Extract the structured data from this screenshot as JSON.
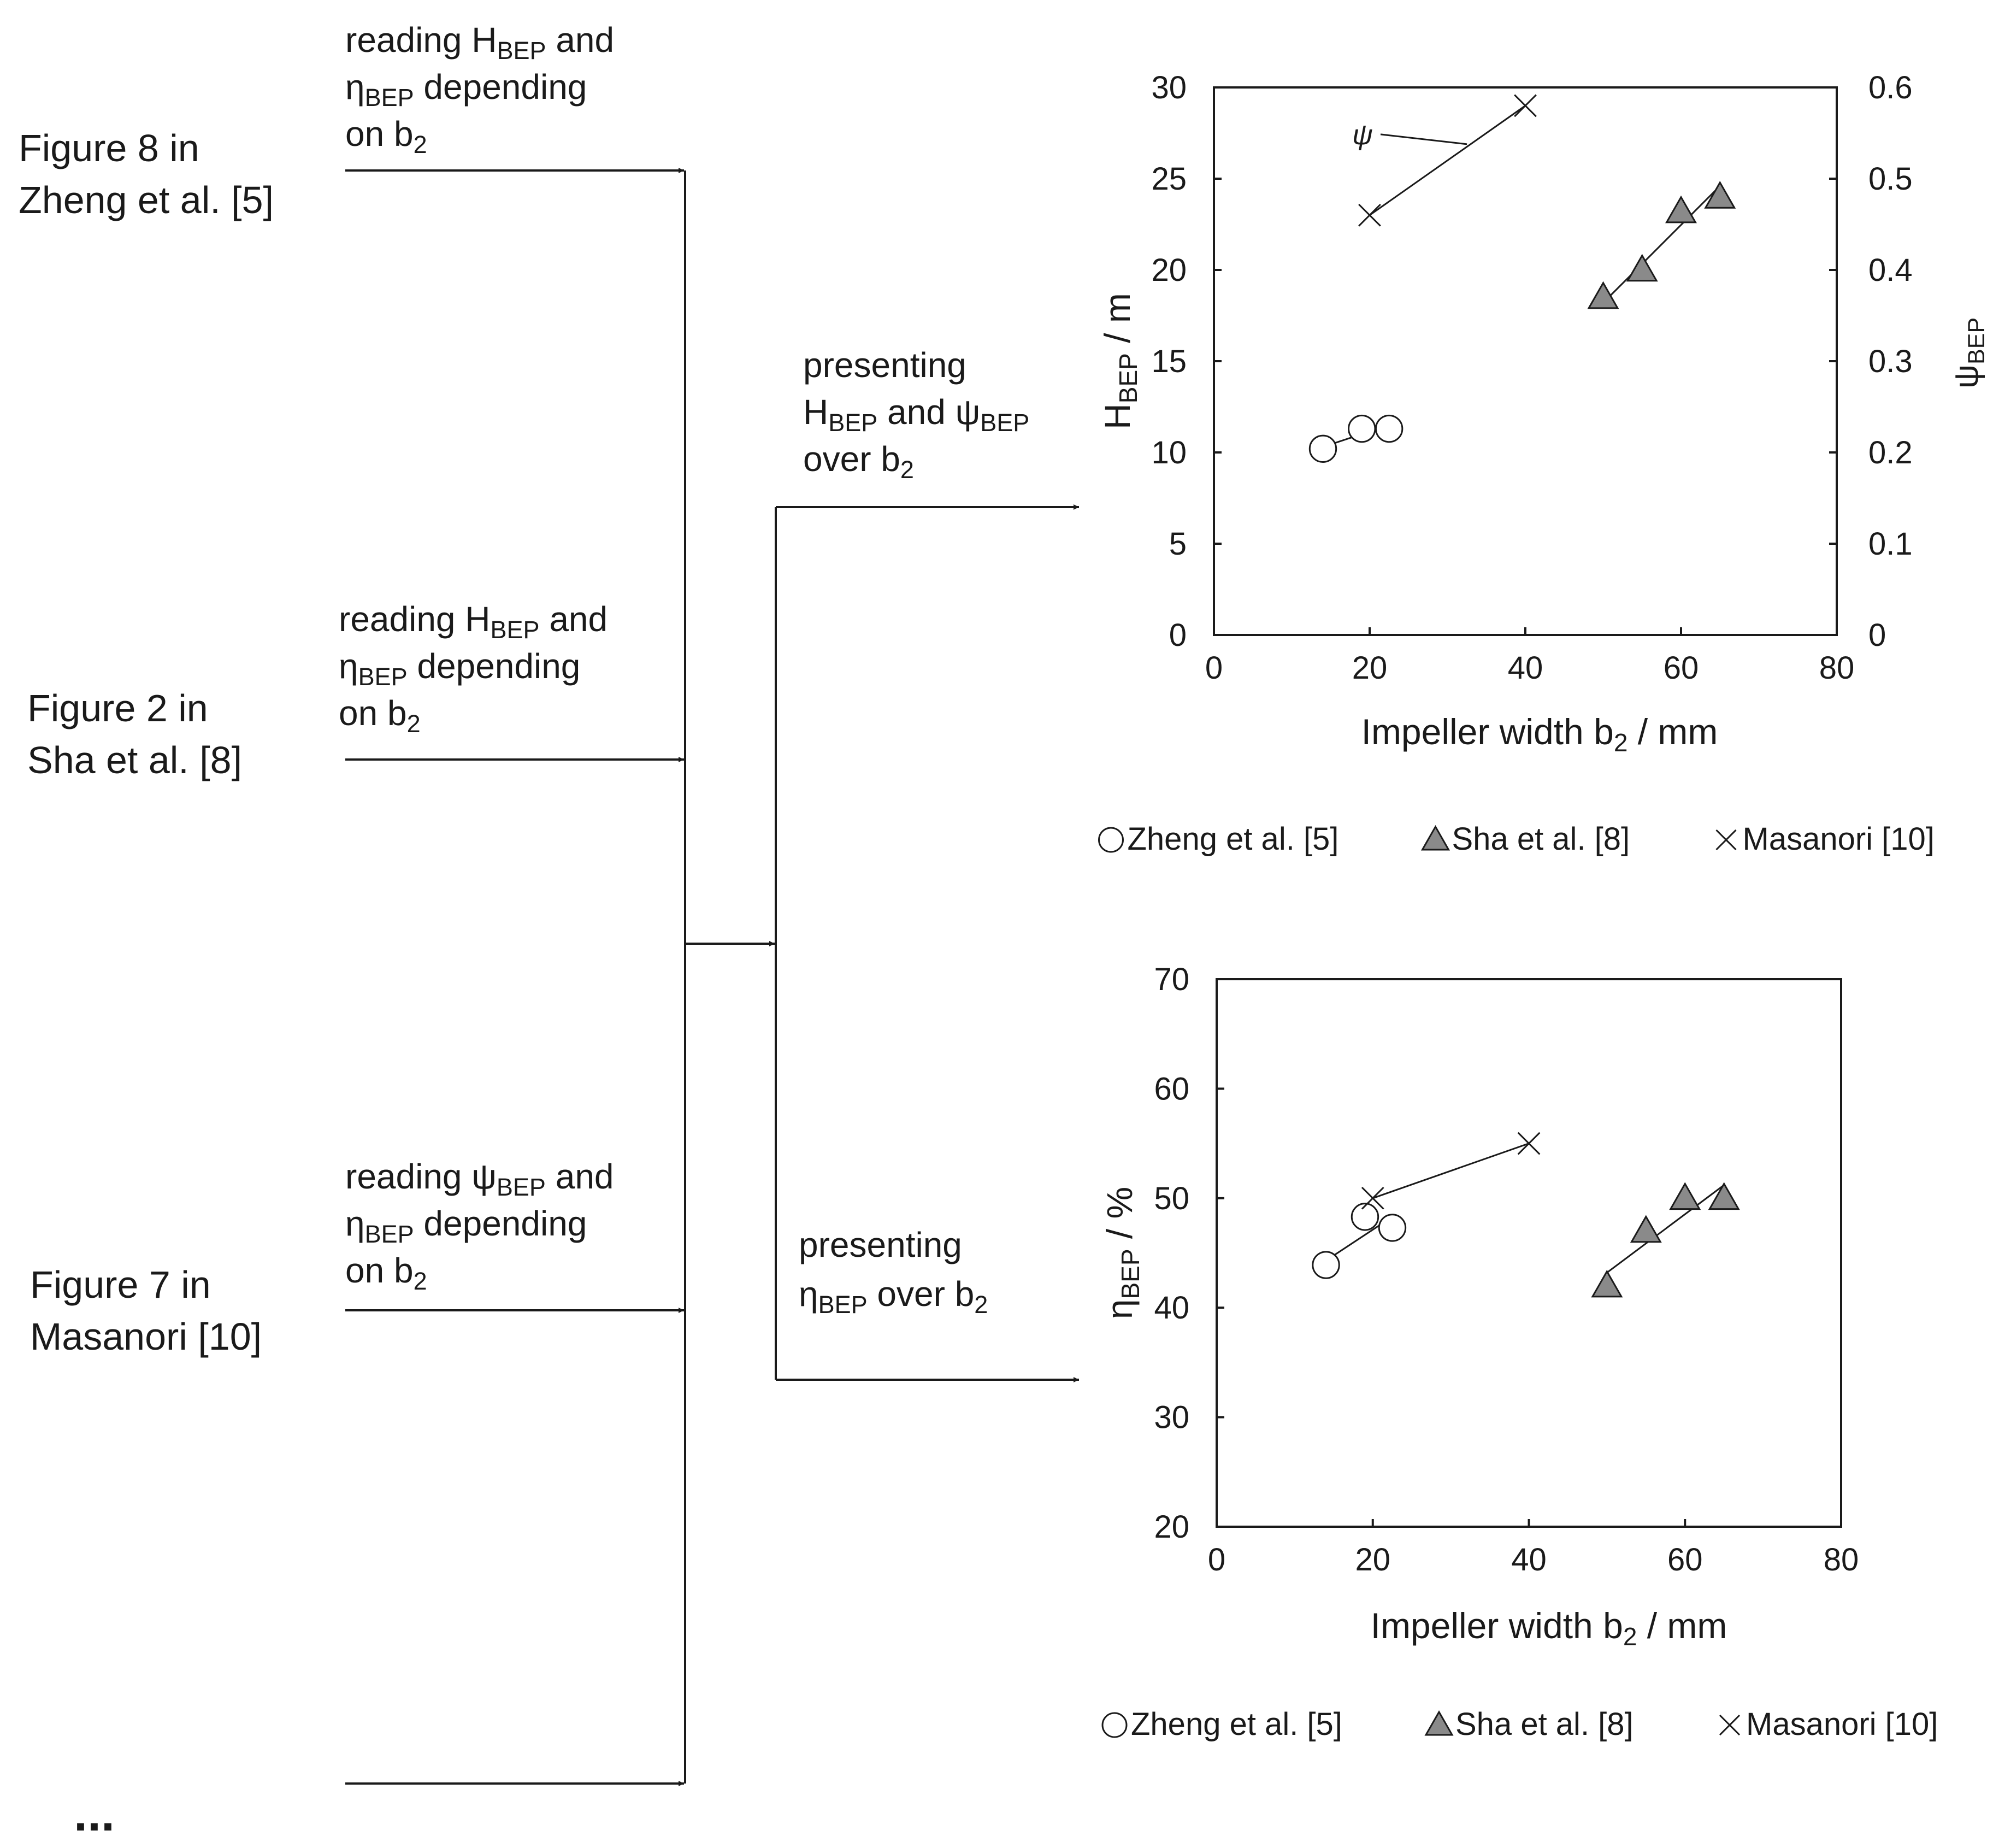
{
  "sources": [
    {
      "id": "zheng",
      "label_lines": [
        "Figure 8 in",
        "Zheng et al. [5]"
      ],
      "reading_lines": [
        [
          {
            "t": "reading H"
          },
          {
            "t": "BEP",
            "sub": true
          },
          {
            "t": " and"
          }
        ],
        [
          {
            "t": "η"
          },
          {
            "t": "BEP",
            "sub": true
          },
          {
            "t": " depending"
          }
        ],
        [
          {
            "t": "on b"
          },
          {
            "t": "2",
            "sub": true
          }
        ]
      ]
    },
    {
      "id": "sha",
      "label_lines": [
        "Figure 2 in",
        "Sha et al. [8]"
      ],
      "reading_lines": [
        [
          {
            "t": "reading H"
          },
          {
            "t": "BEP",
            "sub": true
          },
          {
            "t": " and"
          }
        ],
        [
          {
            "t": "η"
          },
          {
            "t": "BEP",
            "sub": true
          },
          {
            "t": " depending"
          }
        ],
        [
          {
            "t": "on b"
          },
          {
            "t": "2",
            "sub": true
          }
        ]
      ]
    },
    {
      "id": "masanori",
      "label_lines": [
        "Figure 7 in",
        "Masanori [10]"
      ],
      "reading_lines": [
        [
          {
            "t": "reading ψ"
          },
          {
            "t": "BEP",
            "sub": true
          },
          {
            "t": " and"
          }
        ],
        [
          {
            "t": "η"
          },
          {
            "t": "BEP",
            "sub": true
          },
          {
            "t": " depending"
          }
        ],
        [
          {
            "t": "on b"
          },
          {
            "t": "2",
            "sub": true
          }
        ]
      ]
    }
  ],
  "ellipsis": "...",
  "outputs": [
    {
      "id": "head",
      "lines": [
        [
          {
            "t": "presenting"
          }
        ],
        [
          {
            "t": "H"
          },
          {
            "t": "BEP",
            "sub": true
          },
          {
            "t": " and ψ"
          },
          {
            "t": "BEP",
            "sub": true
          }
        ],
        [
          {
            "t": "over b"
          },
          {
            "t": "2",
            "sub": true
          }
        ]
      ]
    },
    {
      "id": "efficiency",
      "lines": [
        [
          {
            "t": "presenting"
          }
        ],
        [
          {
            "t": "η"
          },
          {
            "t": "BEP",
            "sub": true
          },
          {
            "t": " over b"
          },
          {
            "t": "2",
            "sub": true
          }
        ]
      ]
    }
  ],
  "chart_data": [
    {
      "type": "scatter",
      "xlabel": [
        {
          "t": "Impeller width b"
        },
        {
          "t": "2",
          "sub": true
        },
        {
          "t": " / mm"
        }
      ],
      "ylabel": [
        {
          "t": "H"
        },
        {
          "t": "BEP",
          "sub": true
        },
        {
          "t": " / m"
        }
      ],
      "y2label": [
        {
          "t": "ψ"
        },
        {
          "t": "BEP",
          "sub": true
        }
      ],
      "xlim": [
        0,
        80
      ],
      "ylim": [
        0,
        30
      ],
      "y2lim": [
        0,
        0.6
      ],
      "xticks": [
        0,
        20,
        40,
        60,
        80
      ],
      "yticks": [
        0,
        5,
        10,
        15,
        20,
        25,
        30
      ],
      "y2ticks": [
        "0",
        "0.1",
        "0.2",
        "0.3",
        "0.4",
        "0.5",
        "0.6"
      ],
      "grid": false,
      "legend_position": "bottom",
      "series": [
        {
          "name": "Zheng et al. [5]",
          "marker": "circle",
          "x": [
            14,
            19,
            22.5
          ],
          "y": [
            10.2,
            11.3,
            11.3
          ],
          "trend": [
            [
              14,
              10.3
            ],
            [
              22.5,
              11.5
            ]
          ]
        },
        {
          "name": "Sha et al. [8]",
          "marker": "triangle",
          "x": [
            50,
            55,
            60,
            65
          ],
          "y": [
            18.5,
            20,
            23.2,
            24
          ],
          "trend": [
            [
              50,
              18.2
            ],
            [
              65,
              24.6
            ]
          ]
        },
        {
          "name": "Masanori [10]",
          "marker": "x",
          "axis": "y2",
          "x": [
            20,
            40
          ],
          "y": [
            0.46,
            0.58
          ],
          "trend": [
            [
              20,
              0.46
            ],
            [
              40,
              0.58
            ]
          ]
        }
      ],
      "annotation": {
        "text": "ψ",
        "points_to": [
          32.5,
          0.545
        ],
        "label_at": [
          20,
          0.545
        ]
      }
    },
    {
      "type": "scatter",
      "xlabel": [
        {
          "t": "Impeller width b"
        },
        {
          "t": "2",
          "sub": true
        },
        {
          "t": " / mm"
        }
      ],
      "ylabel": [
        {
          "t": "η"
        },
        {
          "t": "BEP",
          "sub": true
        },
        {
          "t": " / %"
        }
      ],
      "xlim": [
        0,
        80
      ],
      "ylim": [
        20,
        70
      ],
      "xticks": [
        0,
        20,
        40,
        60,
        80
      ],
      "yticks": [
        20,
        30,
        40,
        50,
        60,
        70
      ],
      "grid": false,
      "legend_position": "bottom",
      "series": [
        {
          "name": "Zheng et al. [5]",
          "marker": "circle",
          "x": [
            14,
            19,
            22.5
          ],
          "y": [
            43.9,
            48.3,
            47.3
          ],
          "trend": [
            [
              14,
              44.3
            ],
            [
              22.5,
              48.3
            ]
          ]
        },
        {
          "name": "Sha et al. [8]",
          "marker": "triangle",
          "x": [
            50,
            55,
            60,
            65
          ],
          "y": [
            42,
            47,
            50,
            50
          ],
          "trend": [
            [
              50,
              43.2
            ],
            [
              65,
              51.2
            ]
          ]
        },
        {
          "name": "Masanori [10]",
          "marker": "x",
          "x": [
            20,
            40
          ],
          "y": [
            50,
            55
          ],
          "trend": [
            [
              20,
              50
            ],
            [
              40,
              55
            ]
          ]
        }
      ]
    }
  ]
}
